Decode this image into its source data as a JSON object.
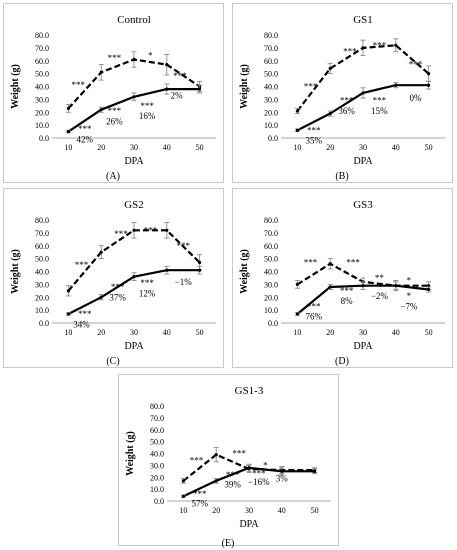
{
  "chart_data": [
    {
      "type": "line",
      "panel_label": "(A)",
      "title": "Control",
      "xlabel": "DPA",
      "ylabel": "Weight (g)",
      "x": [
        10,
        20,
        30,
        40,
        50
      ],
      "xticks": [
        "10",
        "20",
        "30",
        "40",
        "50"
      ],
      "ylim": [
        0,
        80
      ],
      "yticks": [
        "0.0",
        "10.0",
        "20.0",
        "30.0",
        "40.0",
        "50.0",
        "60.0",
        "70.0",
        "80.0"
      ],
      "series": [
        {
          "style": "dashed",
          "values": [
            23,
            51,
            61,
            57,
            40
          ],
          "errors": [
            3,
            6,
            6,
            8,
            4
          ]
        },
        {
          "style": "solid",
          "values": [
            5,
            22,
            32,
            38,
            38
          ],
          "errors": [
            1,
            2,
            3,
            4,
            3
          ]
        }
      ],
      "annotations": [
        {
          "text": "***",
          "x": 13,
          "y": 41
        },
        {
          "text": "***",
          "x": 24,
          "y": 62
        },
        {
          "text": "*",
          "x": 35,
          "y": 64
        },
        {
          "text": "***",
          "x": 44,
          "y": 48
        },
        {
          "text": "***",
          "x": 15,
          "y": 7
        },
        {
          "text": "42%",
          "x": 15,
          "y": -1
        },
        {
          "text": "***",
          "x": 24,
          "y": 21
        },
        {
          "text": "26%",
          "x": 24,
          "y": 13
        },
        {
          "text": "***",
          "x": 34,
          "y": 25
        },
        {
          "text": "16%",
          "x": 34,
          "y": 17
        },
        {
          "text": "2%",
          "x": 43,
          "y": 33
        }
      ]
    },
    {
      "type": "line",
      "panel_label": "(B)",
      "title": "GS1",
      "xlabel": "DPA",
      "ylabel": "Weight (g)",
      "x": [
        10,
        20,
        30,
        40,
        50
      ],
      "xticks": [
        "10",
        "20",
        "30",
        "40",
        "50"
      ],
      "ylim": [
        0,
        80
      ],
      "yticks": [
        "0.0",
        "10.0",
        "20.0",
        "30.0",
        "40.0",
        "50.0",
        "60.0",
        "70.0",
        "80.0"
      ],
      "series": [
        {
          "style": "dashed",
          "values": [
            21,
            54,
            70,
            72,
            50
          ],
          "errors": [
            2,
            4,
            6,
            5,
            6
          ]
        },
        {
          "style": "solid",
          "values": [
            6,
            19,
            35,
            41,
            41
          ],
          "errors": [
            1,
            2,
            4,
            2,
            3
          ]
        }
      ],
      "annotations": [
        {
          "text": "***",
          "x": 14,
          "y": 40
        },
        {
          "text": "***",
          "x": 26,
          "y": 67
        },
        {
          "text": "***",
          "x": 35,
          "y": 72
        },
        {
          "text": "***",
          "x": 46,
          "y": 57
        },
        {
          "text": "***",
          "x": 15,
          "y": 6
        },
        {
          "text": "35%",
          "x": 15,
          "y": -2
        },
        {
          "text": "***",
          "x": 25,
          "y": 29
        },
        {
          "text": "36%",
          "x": 25,
          "y": 21
        },
        {
          "text": "***",
          "x": 35,
          "y": 29
        },
        {
          "text": "15%",
          "x": 35,
          "y": 21
        },
        {
          "text": "0%",
          "x": 46,
          "y": 31
        }
      ]
    },
    {
      "type": "line",
      "panel_label": "(C)",
      "title": "GS2",
      "xlabel": "DPA",
      "ylabel": "Weight (g)",
      "x": [
        10,
        20,
        30,
        40,
        50
      ],
      "xticks": [
        "10",
        "20",
        "30",
        "40",
        "50"
      ],
      "ylim": [
        0,
        80
      ],
      "yticks": [
        "0.0",
        "10.0",
        "20.0",
        "30.0",
        "40.0",
        "50.0",
        "60.0",
        "70.0",
        "80.0"
      ],
      "series": [
        {
          "style": "dashed",
          "values": [
            25,
            55,
            72,
            72,
            47
          ],
          "errors": [
            4,
            5,
            6,
            6,
            6
          ]
        },
        {
          "style": "solid",
          "values": [
            7,
            20,
            36,
            41,
            41
          ],
          "errors": [
            1,
            2,
            3,
            3,
            3
          ]
        }
      ],
      "annotations": [
        {
          "text": "***",
          "x": 14,
          "y": 45
        },
        {
          "text": "***",
          "x": 26,
          "y": 69
        },
        {
          "text": "***",
          "x": 35,
          "y": 72
        },
        {
          "text": "***",
          "x": 45,
          "y": 60
        },
        {
          "text": "***",
          "x": 15,
          "y": 7
        },
        {
          "text": "34%",
          "x": 14,
          "y": -1
        },
        {
          "text": "***",
          "x": 25,
          "y": 28
        },
        {
          "text": "37%",
          "x": 25,
          "y": 20
        },
        {
          "text": "***",
          "x": 34,
          "y": 31
        },
        {
          "text": "12%",
          "x": 34,
          "y": 23
        },
        {
          "text": "−1%",
          "x": 45,
          "y": 32
        }
      ]
    },
    {
      "type": "line",
      "panel_label": "(D)",
      "title": "GS3",
      "xlabel": "DPA",
      "ylabel": "Weight (g)",
      "x": [
        10,
        20,
        30,
        40,
        50
      ],
      "xticks": [
        "10",
        "20",
        "30",
        "40",
        "50"
      ],
      "ylim": [
        0,
        80
      ],
      "yticks": [
        "0.0",
        "10.0",
        "20.0",
        "30.0",
        "40.0",
        "50.0",
        "60.0",
        "70.0",
        "80.0"
      ],
      "series": [
        {
          "style": "dashed",
          "values": [
            30,
            46,
            32,
            29,
            29
          ],
          "errors": [
            3,
            4,
            3,
            4,
            3
          ]
        },
        {
          "style": "solid",
          "values": [
            7,
            28,
            29,
            29,
            26
          ],
          "errors": [
            1,
            2,
            3,
            3,
            2
          ]
        }
      ],
      "annotations": [
        {
          "text": "***",
          "x": 14,
          "y": 47
        },
        {
          "text": "***",
          "x": 27,
          "y": 47
        },
        {
          "text": "**",
          "x": 35,
          "y": 35
        },
        {
          "text": "*",
          "x": 44,
          "y": 33
        },
        {
          "text": "***",
          "x": 15,
          "y": 13
        },
        {
          "text": "76%",
          "x": 15,
          "y": 5
        },
        {
          "text": "***",
          "x": 25,
          "y": 25
        },
        {
          "text": "8%",
          "x": 25,
          "y": 17
        },
        {
          "text": "−2%",
          "x": 35,
          "y": 21
        },
        {
          "text": "*",
          "x": 44,
          "y": 21
        },
        {
          "text": "−7%",
          "x": 44,
          "y": 13
        }
      ]
    },
    {
      "type": "line",
      "panel_label": "(E)",
      "title": "GS1-3",
      "xlabel": "DPA",
      "ylabel": "Weight (g)",
      "x": [
        10,
        20,
        30,
        40,
        50
      ],
      "xticks": [
        "10",
        "20",
        "30",
        "40",
        "50"
      ],
      "ylim": [
        0,
        80
      ],
      "yticks": [
        "0.0",
        "10.0",
        "20.0",
        "30.0",
        "40.0",
        "50.0",
        "60.0",
        "70.0",
        "80.0"
      ],
      "series": [
        {
          "style": "dashed",
          "values": [
            17,
            39,
            27,
            26,
            26
          ],
          "errors": [
            2,
            6,
            3,
            3,
            2
          ]
        },
        {
          "style": "solid",
          "values": [
            4,
            17,
            28,
            25,
            25
          ],
          "errors": [
            1,
            2,
            3,
            3,
            2
          ]
        }
      ],
      "annotations": [
        {
          "text": "***",
          "x": 14,
          "y": 34
        },
        {
          "text": "***",
          "x": 27,
          "y": 40
        },
        {
          "text": "*",
          "x": 35,
          "y": 30
        },
        {
          "text": "***",
          "x": 15,
          "y": 6
        },
        {
          "text": "57%",
          "x": 15,
          "y": -2
        },
        {
          "text": "***",
          "x": 25,
          "y": 22
        },
        {
          "text": "39%",
          "x": 25,
          "y": 14
        },
        {
          "text": "***",
          "x": 33,
          "y": 23
        },
        {
          "text": "−16%",
          "x": 33,
          "y": 16
        },
        {
          "text": "3%",
          "x": 40,
          "y": 19
        }
      ]
    }
  ]
}
